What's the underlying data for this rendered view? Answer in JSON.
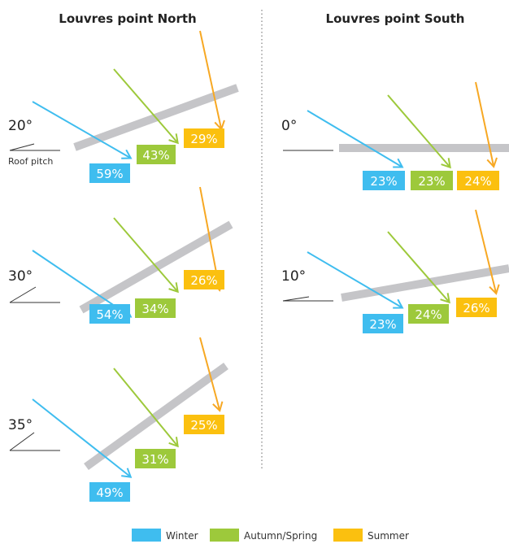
{
  "colors": {
    "winter": "#3fbdef",
    "autumn_spring": "#9dc93b",
    "summer": "#f7a823",
    "summer_box": "#fbc00f",
    "louvre": "#c5c5c8",
    "line": "#333333"
  },
  "titles": {
    "north": "Louvres point North",
    "south": "Louvres point South"
  },
  "roof_pitch_label": "Roof pitch",
  "north_panels": [
    {
      "angle": "20°",
      "winter": "59%",
      "autumn_spring": "43%",
      "summer": "29%"
    },
    {
      "angle": "30°",
      "winter": "54%",
      "autumn_spring": "34%",
      "summer": "26%"
    },
    {
      "angle": "35°",
      "winter": "49%",
      "autumn_spring": "31%",
      "summer": "25%"
    }
  ],
  "south_panels": [
    {
      "angle": "0°",
      "winter": "23%",
      "autumn_spring": "23%",
      "summer": "24%"
    },
    {
      "angle": "10°",
      "winter": "23%",
      "autumn_spring": "24%",
      "summer": "26%"
    }
  ],
  "legend": {
    "winter": "Winter",
    "autumn_spring": "Autumn/Spring",
    "summer": "Summer"
  }
}
